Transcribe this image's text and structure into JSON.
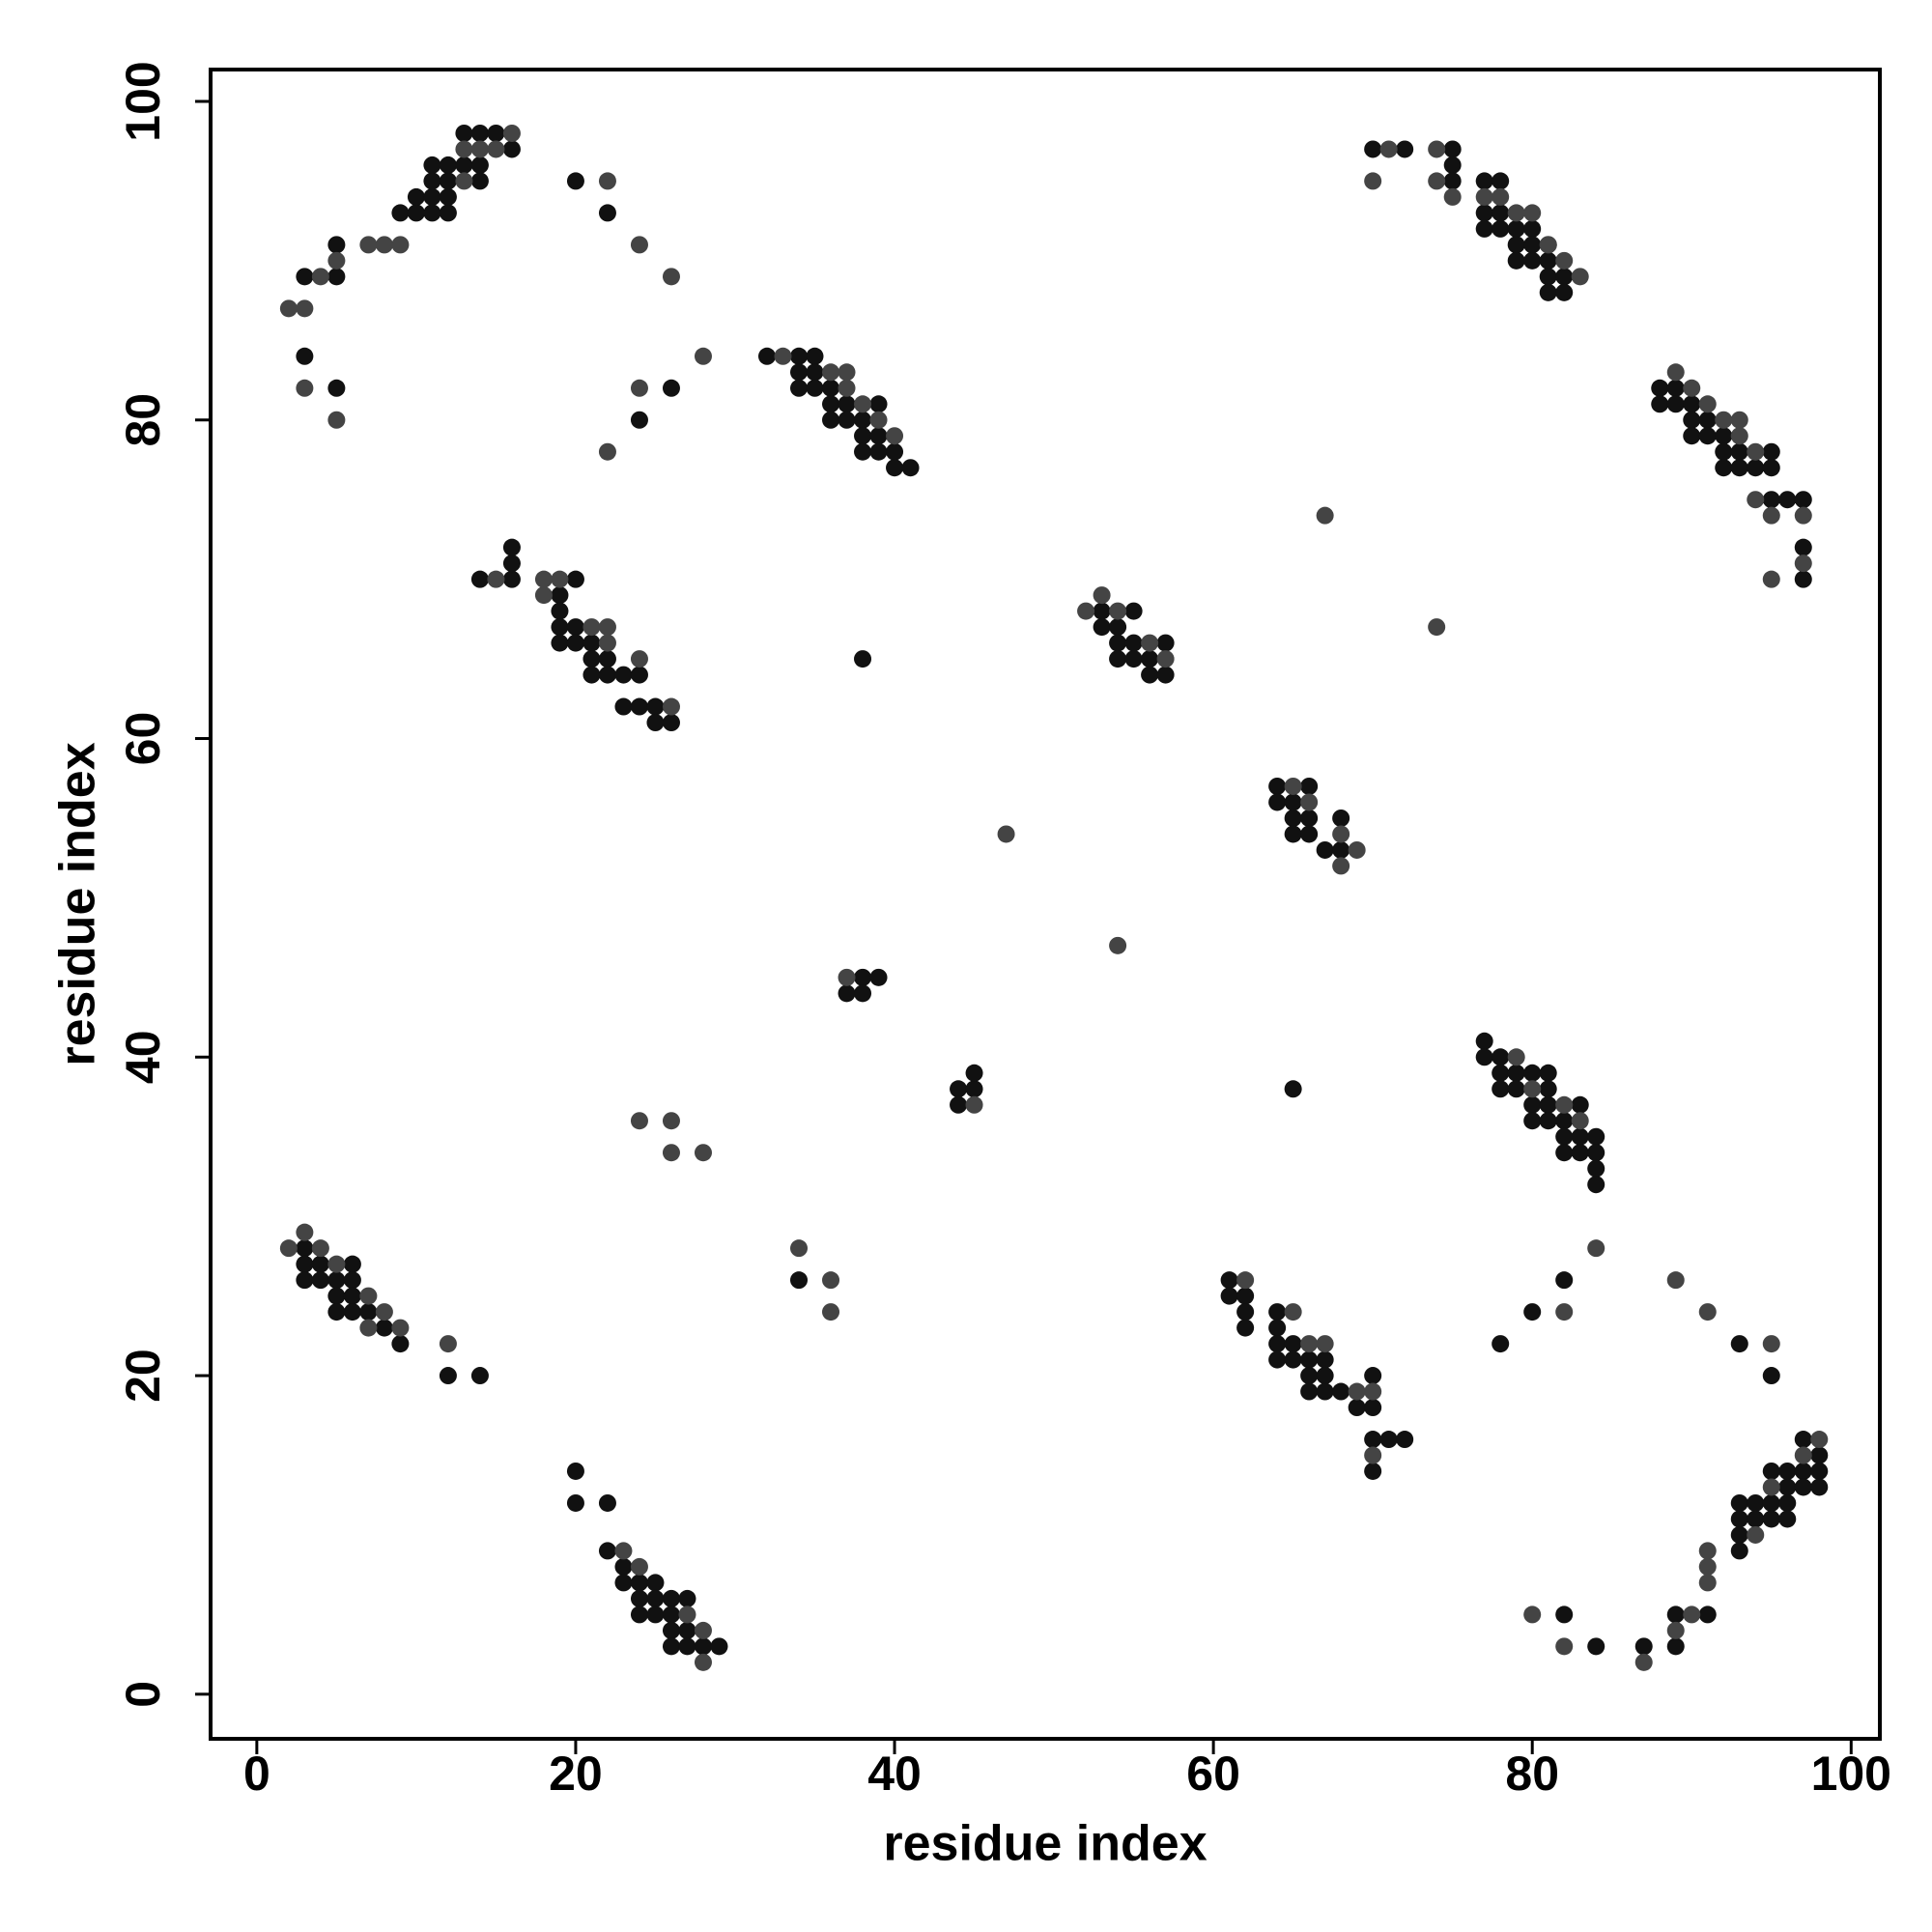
{
  "chart_data": {
    "type": "scatter",
    "xlabel": "residue index",
    "ylabel": "residue index",
    "xlim": [
      -2.9,
      101.8
    ],
    "ylim": [
      -2.8,
      102
    ],
    "xticks": [
      0,
      20,
      40,
      60,
      80,
      100
    ],
    "yticks": [
      0,
      20,
      40,
      60,
      80,
      100
    ],
    "series": [
      {
        "color": "#111111",
        "x": [
          3,
          3,
          5,
          5,
          5,
          9,
          10,
          10,
          11,
          11,
          11,
          11,
          12,
          12,
          12,
          12,
          13,
          13,
          14,
          14,
          14,
          15,
          16,
          20,
          22,
          24,
          26,
          32,
          34,
          35,
          34,
          35,
          34,
          35,
          36,
          36,
          37,
          39,
          36,
          37,
          38,
          38,
          39,
          38,
          39,
          40,
          40,
          41,
          14,
          16,
          16,
          16,
          20,
          19,
          19,
          19,
          20,
          19,
          20,
          21,
          21,
          22,
          21,
          22,
          23,
          24,
          23,
          24,
          25,
          25,
          26,
          38,
          53,
          55,
          53,
          54,
          54,
          55,
          57,
          54,
          55,
          56,
          56,
          57,
          64,
          66,
          64,
          65,
          65,
          66,
          68,
          65,
          66,
          67,
          68,
          38,
          39,
          37,
          38,
          44,
          45,
          45,
          44,
          65,
          77,
          77,
          78,
          78,
          79,
          80,
          81,
          78,
          79,
          81,
          80,
          81,
          83,
          80,
          81,
          82,
          82,
          83,
          84,
          82,
          83,
          84,
          84,
          84,
          3,
          3,
          4,
          6,
          3,
          4,
          5,
          6,
          5,
          6,
          5,
          6,
          7,
          8,
          9,
          12,
          14,
          34,
          61,
          61,
          62,
          62,
          62,
          64,
          64,
          64,
          65,
          64,
          65,
          66,
          67,
          66,
          67,
          66,
          67,
          68,
          69,
          70,
          70,
          70,
          71,
          72,
          70,
          82,
          80,
          78,
          93,
          95,
          20,
          20,
          22,
          22,
          23,
          23,
          24,
          25,
          24,
          25,
          26,
          27,
          24,
          25,
          26,
          26,
          27,
          26,
          27,
          28,
          29,
          82,
          84,
          87,
          89,
          91,
          89,
          93,
          94,
          95,
          93,
          94,
          95,
          93,
          93,
          96,
          96,
          95,
          97,
          96,
          96,
          97,
          97,
          98,
          98,
          98,
          70,
          72,
          75,
          75,
          75,
          77,
          78,
          77,
          78,
          77,
          78,
          79,
          80,
          79,
          80,
          81,
          79,
          80,
          81,
          81,
          82,
          81,
          82,
          88,
          89,
          88,
          89,
          90,
          90,
          91,
          90,
          91,
          92,
          92,
          93,
          95,
          92,
          93,
          94,
          95,
          95,
          96,
          97,
          97,
          97
        ],
        "values": [
          89,
          84,
          91,
          89,
          82,
          93,
          93,
          94,
          93,
          94,
          95,
          96,
          93,
          94,
          95,
          96,
          96,
          98,
          95,
          96,
          98,
          98,
          97,
          95,
          93,
          80,
          82,
          84,
          84,
          84,
          83,
          83,
          82,
          82,
          82,
          81,
          81,
          81,
          80,
          80,
          80,
          79,
          79,
          78,
          78,
          78,
          77,
          77,
          70,
          70,
          71,
          72,
          70,
          69,
          68,
          67,
          67,
          66,
          66,
          66,
          65,
          65,
          64,
          64,
          64,
          64,
          62,
          62,
          62,
          61,
          61,
          65,
          68,
          68,
          67,
          67,
          66,
          66,
          66,
          65,
          65,
          65,
          64,
          64,
          57,
          57,
          56,
          56,
          55,
          55,
          55,
          54,
          54,
          53,
          53,
          45,
          45,
          44,
          44,
          38,
          38,
          39,
          37,
          38,
          41,
          40,
          40,
          39,
          39,
          39,
          39,
          38,
          38,
          38,
          37,
          37,
          37,
          36,
          36,
          36,
          35,
          35,
          35,
          34,
          34,
          34,
          33,
          32,
          28,
          27,
          27,
          27,
          26,
          26,
          26,
          26,
          25,
          25,
          24,
          24,
          24,
          23,
          22,
          20,
          20,
          26,
          26,
          25,
          25,
          24,
          23,
          24,
          23,
          22,
          22,
          21,
          21,
          21,
          21,
          20,
          20,
          19,
          19,
          19,
          18,
          18,
          20,
          16,
          16,
          16,
          14,
          26,
          24,
          22,
          22,
          20,
          14,
          12,
          12,
          9,
          8,
          7,
          7,
          7,
          6,
          6,
          6,
          6,
          5,
          5,
          5,
          4,
          4,
          3,
          3,
          3,
          3,
          5,
          3,
          3,
          5,
          5,
          3,
          12,
          12,
          12,
          11,
          11,
          11,
          10,
          9,
          13,
          14,
          14,
          14,
          12,
          11,
          13,
          16,
          15,
          14,
          13,
          97,
          97,
          97,
          96,
          95,
          95,
          95,
          93,
          93,
          92,
          92,
          92,
          92,
          91,
          91,
          91,
          90,
          90,
          90,
          89,
          89,
          88,
          88,
          82,
          82,
          81,
          81,
          81,
          80,
          80,
          79,
          79,
          79,
          78,
          78,
          78,
          77,
          77,
          77,
          77,
          75,
          75,
          75,
          72,
          70
        ]
      },
      {
        "color": "#444444",
        "x": [
          2,
          3,
          3,
          4,
          5,
          5,
          7,
          8,
          9,
          13,
          14,
          15,
          16,
          13,
          22,
          24,
          26,
          24,
          22,
          28,
          33,
          36,
          37,
          37,
          38,
          39,
          40,
          15,
          18,
          19,
          18,
          21,
          22,
          22,
          24,
          26,
          52,
          53,
          54,
          56,
          57,
          67,
          74,
          65,
          66,
          68,
          69,
          68,
          47,
          54,
          37,
          45,
          79,
          80,
          82,
          83,
          24,
          26,
          26,
          28,
          2,
          3,
          4,
          5,
          7,
          8,
          7,
          9,
          12,
          34,
          36,
          36,
          62,
          65,
          66,
          67,
          69,
          70,
          70,
          84,
          82,
          89,
          91,
          95,
          23,
          24,
          27,
          28,
          28,
          80,
          82,
          87,
          89,
          90,
          91,
          91,
          91,
          94,
          95,
          98,
          97,
          71,
          74,
          70,
          74,
          75,
          77,
          78,
          79,
          80,
          81,
          82,
          83,
          90,
          89,
          91,
          92,
          93,
          93,
          94,
          94,
          95,
          97,
          97,
          95
        ],
        "values": [
          87,
          87,
          82,
          89,
          90,
          80,
          91,
          91,
          91,
          95,
          97,
          97,
          98,
          97,
          95,
          91,
          89,
          82,
          78,
          84,
          84,
          83,
          83,
          82,
          81,
          80,
          79,
          70,
          70,
          70,
          69,
          67,
          67,
          66,
          65,
          62,
          68,
          69,
          68,
          66,
          65,
          74,
          67,
          57,
          56,
          54,
          53,
          52,
          54,
          47,
          45,
          37,
          40,
          38,
          37,
          36,
          36,
          36,
          34,
          34,
          28,
          29,
          28,
          27,
          25,
          24,
          23,
          23,
          22,
          28,
          26,
          24,
          26,
          24,
          22,
          22,
          19,
          19,
          15,
          28,
          24,
          26,
          24,
          22,
          9,
          8,
          5,
          4,
          2,
          5,
          3,
          2,
          4,
          5,
          9,
          8,
          7,
          10,
          13,
          16,
          15,
          97,
          97,
          95,
          95,
          94,
          94,
          94,
          93,
          93,
          91,
          90,
          89,
          82,
          83,
          81,
          80,
          80,
          79,
          78,
          75,
          74,
          74,
          71,
          70
        ]
      }
    ]
  }
}
